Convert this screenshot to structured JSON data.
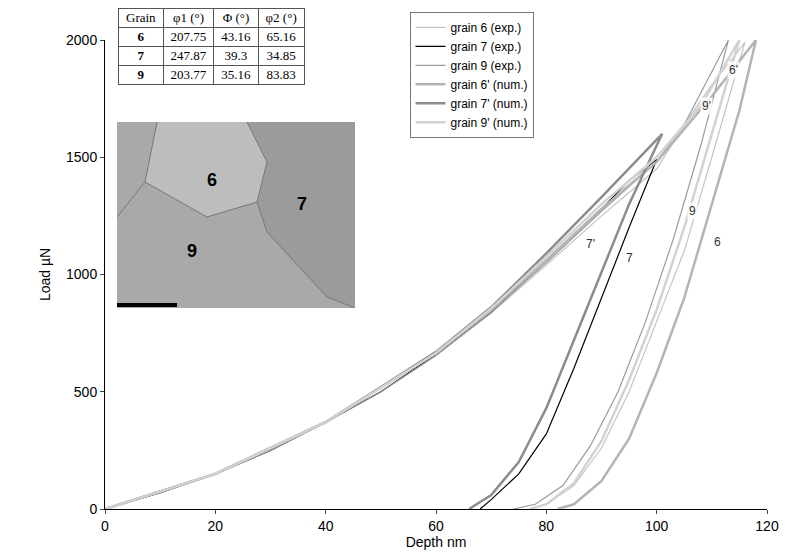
{
  "chart_data": {
    "type": "line",
    "x_label": "Depth nm",
    "y_label": "Load µN",
    "xlim": [
      0,
      120
    ],
    "xticks": [
      0,
      20,
      40,
      60,
      80,
      100,
      120
    ],
    "ylim": [
      0,
      2000
    ],
    "yticks": [
      0,
      500,
      1000,
      1500,
      2000
    ],
    "grid": false,
    "legend": "upper center",
    "series": [
      {
        "name": "grain 6 (exp.)",
        "color": "#c4c4c4",
        "line_style": "solid",
        "x": [
          0,
          10,
          20,
          30,
          40,
          50,
          60,
          70,
          80,
          90,
          100,
          105,
          110,
          116,
          110,
          105,
          100,
          95,
          90,
          85,
          80,
          77
        ],
        "values": [
          0,
          70,
          150,
          250,
          370,
          500,
          655,
          835,
          1040,
          1250,
          1450,
          1640,
          1810,
          1990,
          1500,
          1100,
          800,
          500,
          260,
          100,
          20,
          0
        ]
      },
      {
        "name": "grain 7 (exp.)",
        "color": "#000000",
        "line_style": "solid",
        "x": [
          0,
          10,
          20,
          30,
          40,
          50,
          60,
          70,
          80,
          90,
          95,
          100,
          95,
          90,
          85,
          80,
          75,
          70,
          68
        ],
        "values": [
          0,
          70,
          150,
          250,
          370,
          500,
          660,
          840,
          1060,
          1280,
          1400,
          1490,
          1200,
          900,
          600,
          320,
          150,
          40,
          0
        ]
      },
      {
        "name": "grain 9 (exp.)",
        "color": "#9a9a9a",
        "line_style": "solid",
        "x": [
          0,
          10,
          20,
          30,
          40,
          50,
          60,
          70,
          80,
          90,
          100,
          105,
          113,
          108,
          103,
          98,
          93,
          88,
          83,
          78,
          74
        ],
        "values": [
          0,
          70,
          150,
          250,
          370,
          500,
          655,
          840,
          1050,
          1270,
          1480,
          1640,
          2000,
          1550,
          1150,
          800,
          500,
          270,
          100,
          20,
          0
        ]
      },
      {
        "name": "grain 6' (num.)",
        "color": "#b4b4b4",
        "line_style": "solid",
        "x": [
          0,
          20,
          40,
          60,
          70,
          80,
          90,
          100,
          110,
          118,
          115,
          110,
          105,
          100,
          95,
          90,
          85,
          82
        ],
        "values": [
          0,
          150,
          370,
          665,
          850,
          1060,
          1280,
          1480,
          1760,
          2000,
          1700,
          1300,
          900,
          580,
          300,
          120,
          20,
          0
        ]
      },
      {
        "name": "grain 7' (num.)",
        "color": "#8c8c8c",
        "line_style": "solid",
        "x": [
          0,
          20,
          40,
          60,
          70,
          80,
          90,
          101,
          95,
          90,
          85,
          80,
          75,
          70,
          66
        ],
        "values": [
          0,
          150,
          370,
          670,
          860,
          1090,
          1330,
          1600,
          1300,
          1010,
          720,
          430,
          200,
          60,
          0
        ]
      },
      {
        "name": "grain 9' (num.)",
        "color": "#d2d2d2",
        "line_style": "solid",
        "x": [
          0,
          20,
          40,
          60,
          70,
          80,
          90,
          100,
          108,
          115,
          110,
          105,
          100,
          95,
          90,
          85,
          80,
          77
        ],
        "values": [
          0,
          150,
          370,
          665,
          855,
          1075,
          1300,
          1500,
          1720,
          2000,
          1600,
          1200,
          850,
          550,
          290,
          110,
          20,
          0
        ]
      }
    ],
    "annotations": [
      {
        "text": "6'",
        "x": 114,
        "y": 1870
      },
      {
        "text": "9'",
        "x": 109,
        "y": 1720
      },
      {
        "text": "7'",
        "x": 88,
        "y": 1130
      },
      {
        "text": "7",
        "x": 95,
        "y": 1070
      },
      {
        "text": "9",
        "x": 106.5,
        "y": 1270
      },
      {
        "text": "6",
        "x": 111,
        "y": 1140
      }
    ],
    "table": {
      "header": [
        "Grain",
        "φ1 (°)",
        "Φ (°)",
        "φ2 (°)"
      ],
      "rows": [
        [
          6,
          207.75,
          43.16,
          65.16
        ],
        [
          7,
          247.87,
          39.3,
          34.85
        ],
        [
          9,
          203.77,
          35.16,
          83.83
        ]
      ]
    },
    "inset": {
      "labels": [
        "6",
        "7",
        "9"
      ]
    }
  }
}
